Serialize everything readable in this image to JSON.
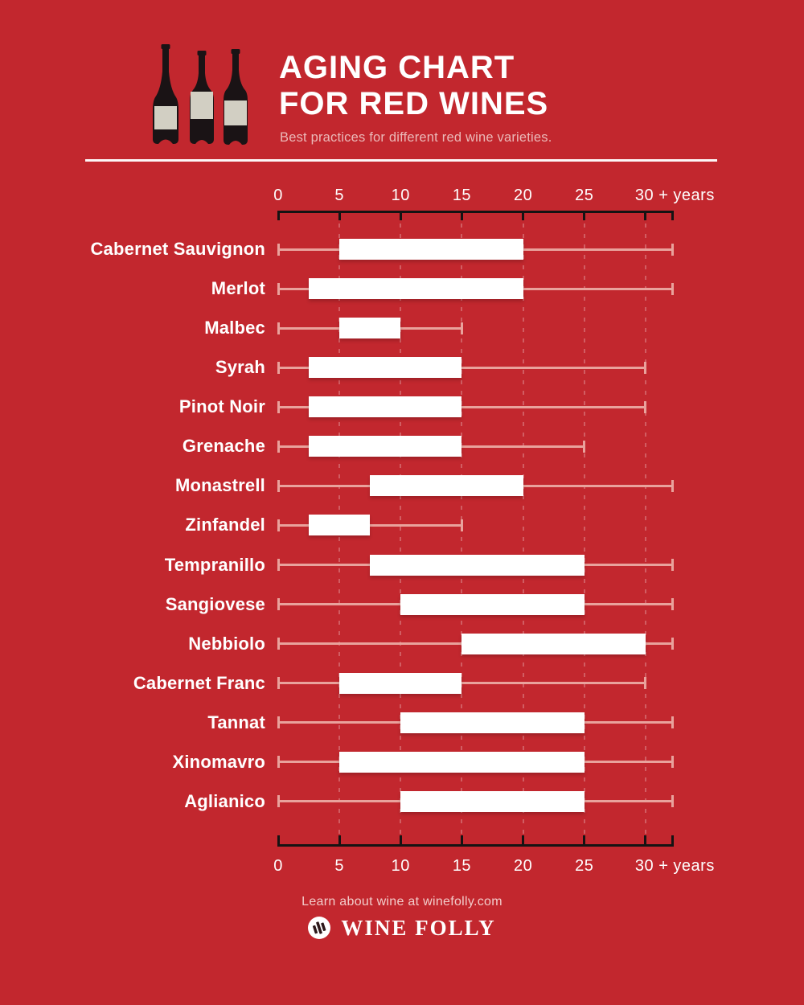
{
  "header": {
    "title_line1": "AGING CHART",
    "title_line2": "FOR RED WINES",
    "subtitle": "Best practices for different red wine varieties."
  },
  "chart_data": {
    "type": "bar",
    "variant": "horizontal-range-bars-with-whiskers",
    "title": "Aging Chart for Red Wines",
    "xlabel": "years",
    "xlim": [
      0,
      32.2
    ],
    "grid": true,
    "x_ticks": [
      0,
      5,
      10,
      15,
      20,
      25,
      30
    ],
    "x_tick_labels": [
      "0",
      "5",
      "10",
      "15",
      "20",
      "25",
      "30 + years"
    ],
    "units": "years of aging",
    "rows": [
      {
        "label": "Cabernet Sauvignon",
        "whisker": [
          0,
          "30+"
        ],
        "bar": [
          5,
          20
        ]
      },
      {
        "label": "Merlot",
        "whisker": [
          0,
          "30+"
        ],
        "bar": [
          2.5,
          20
        ]
      },
      {
        "label": "Malbec",
        "whisker": [
          0,
          15
        ],
        "bar": [
          5,
          10
        ]
      },
      {
        "label": "Syrah",
        "whisker": [
          0,
          30
        ],
        "bar": [
          2.5,
          15
        ]
      },
      {
        "label": "Pinot Noir",
        "whisker": [
          0,
          30
        ],
        "bar": [
          2.5,
          15
        ]
      },
      {
        "label": "Grenache",
        "whisker": [
          0,
          25
        ],
        "bar": [
          2.5,
          15
        ]
      },
      {
        "label": "Monastrell",
        "whisker": [
          0,
          "30+"
        ],
        "bar": [
          7.5,
          20
        ]
      },
      {
        "label": "Zinfandel",
        "whisker": [
          0,
          15
        ],
        "bar": [
          2.5,
          7.5
        ]
      },
      {
        "label": "Tempranillo",
        "whisker": [
          0,
          "30+"
        ],
        "bar": [
          7.5,
          25
        ]
      },
      {
        "label": "Sangiovese",
        "whisker": [
          0,
          "30+"
        ],
        "bar": [
          10,
          25
        ]
      },
      {
        "label": "Nebbiolo",
        "whisker": [
          0,
          "30+"
        ],
        "bar": [
          15,
          30
        ]
      },
      {
        "label": "Cabernet Franc",
        "whisker": [
          0,
          30
        ],
        "bar": [
          5,
          15
        ]
      },
      {
        "label": "Tannat",
        "whisker": [
          0,
          "30+"
        ],
        "bar": [
          10,
          25
        ]
      },
      {
        "label": "Xinomavro",
        "whisker": [
          0,
          "30+"
        ],
        "bar": [
          5,
          25
        ]
      },
      {
        "label": "Aglianico",
        "whisker": [
          0,
          "30+"
        ],
        "bar": [
          10,
          25
        ]
      }
    ]
  },
  "footer": {
    "tagline": "Learn about wine at winefolly.com",
    "brand": "WINE FOLLY"
  },
  "icons": {
    "bottles": "wine-bottles-illustration",
    "logo": "wine-folly-circle-logo"
  },
  "colors": {
    "background": "#C2272E",
    "bar": "#FFFFFF",
    "whisker": "#E9A29C",
    "axis": "#151313",
    "title": "#FFFFFF",
    "subtitle": "#EBB9B8",
    "tagline": "#F2CCCA",
    "bottle": "#1A1315",
    "bottle_label": "#D2CFC3",
    "logo_stroke": "#2D181A"
  }
}
